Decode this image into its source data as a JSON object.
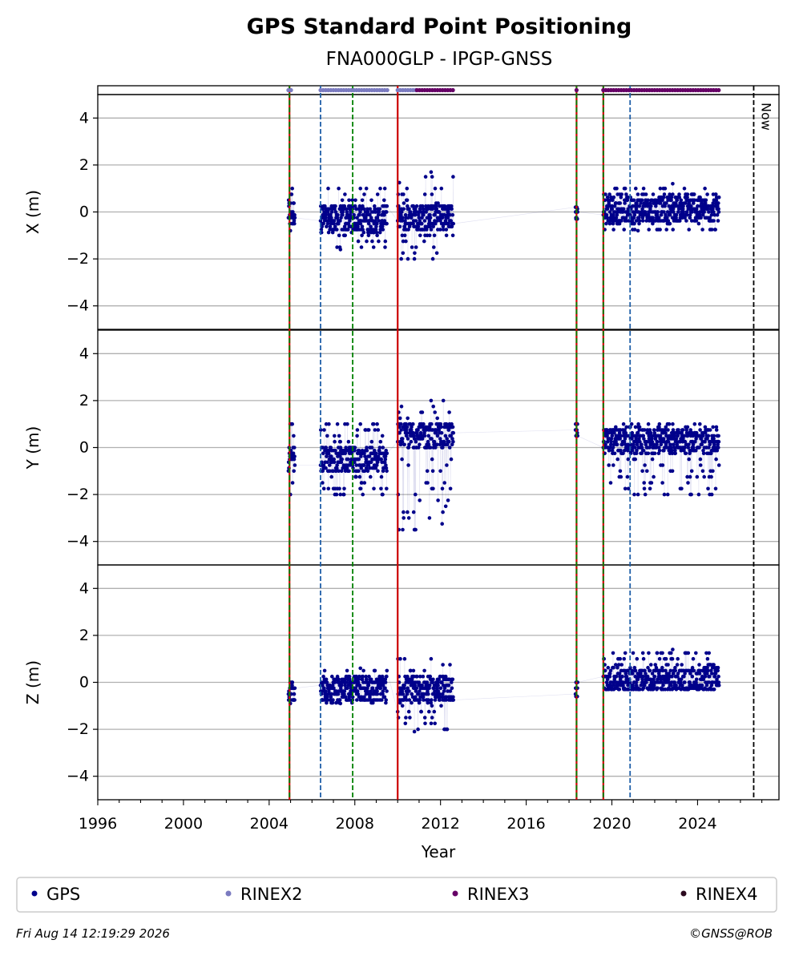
{
  "chart_data": {
    "type": "scatter",
    "title": "GPS Standard Point Positioning",
    "subtitle": "FNA000GLP - IPGP-GNSS",
    "xlabel": "Year",
    "xlim": [
      1996.0,
      2027.8
    ],
    "x_ticks": [
      "1996",
      "2000",
      "2004",
      "2008",
      "2012",
      "2016",
      "2020",
      "2024"
    ],
    "now_label": "Now",
    "now_year": 2026.62,
    "grid": true,
    "legend_placement": "bottom",
    "legend": [
      {
        "name": "GPS",
        "color": "#00008b"
      },
      {
        "name": "RINEX2",
        "color": "#7b7bc0"
      },
      {
        "name": "RINEX3",
        "color": "#660066"
      },
      {
        "name": "RINEX4",
        "color": "#2b0a1e"
      }
    ],
    "panels": [
      {
        "ylabel": "X (m)",
        "ylim": [
          -5,
          5
        ],
        "y_ticks": [
          "4",
          "2",
          "0",
          "−2",
          "−4"
        ],
        "series": [
          {
            "name": "GPS",
            "color": "#00008b",
            "clusters": [
              {
                "x": [
                  2004.9,
                  2005.2
                ],
                "y": [
                  -0.8,
                  1.0
                ],
                "center": 0.0
              },
              {
                "x": [
                  2006.4,
                  2009.5
                ],
                "y": [
                  -1.6,
                  1.0
                ],
                "center": -0.3
              },
              {
                "x": [
                  2010.0,
                  2012.6
                ],
                "y": [
                  -2.0,
                  1.7
                ],
                "center": -0.2
              },
              {
                "x": [
                  2018.3,
                  2018.4
                ],
                "y": [
                  -0.3,
                  0.2
                ],
                "center": 0.0
              },
              {
                "x": [
                  2019.6,
                  2025.0
                ],
                "y": [
                  -0.8,
                  1.2
                ],
                "center": 0.1
              }
            ]
          }
        ]
      },
      {
        "ylabel": "Y (m)",
        "ylim": [
          -5,
          5
        ],
        "y_ticks": [
          "4",
          "2",
          "0",
          "−2",
          "−4"
        ],
        "series": [
          {
            "name": "GPS",
            "color": "#00008b",
            "clusters": [
              {
                "x": [
                  2004.9,
                  2005.2
                ],
                "y": [
                  -2.0,
                  1.0
                ],
                "center": -0.5
              },
              {
                "x": [
                  2006.4,
                  2009.5
                ],
                "y": [
                  -2.0,
                  1.0
                ],
                "center": -0.5
              },
              {
                "x": [
                  2010.0,
                  2012.6
                ],
                "y": [
                  -3.5,
                  2.0
                ],
                "center": 0.5
              },
              {
                "x": [
                  2018.3,
                  2018.4
                ],
                "y": [
                  0.5,
                  1.0
                ],
                "center": 0.7
              },
              {
                "x": [
                  2019.6,
                  2025.0
                ],
                "y": [
                  -2.0,
                  1.0
                ],
                "center": 0.3
              }
            ]
          }
        ]
      },
      {
        "ylabel": "Z (m)",
        "ylim": [
          -5,
          5
        ],
        "y_ticks": [
          "4",
          "2",
          "0",
          "−2",
          "−4"
        ],
        "series": [
          {
            "name": "GPS",
            "color": "#00008b",
            "clusters": [
              {
                "x": [
                  2004.9,
                  2005.2
                ],
                "y": [
                  -0.9,
                  0.0
                ],
                "center": -0.4
              },
              {
                "x": [
                  2006.4,
                  2009.5
                ],
                "y": [
                  -0.9,
                  0.6
                ],
                "center": -0.3
              },
              {
                "x": [
                  2010.0,
                  2012.6
                ],
                "y": [
                  -2.1,
                  1.0
                ],
                "center": -0.3
              },
              {
                "x": [
                  2018.3,
                  2018.4
                ],
                "y": [
                  -0.6,
                  0.0
                ],
                "center": -0.4
              },
              {
                "x": [
                  2019.6,
                  2025.0
                ],
                "y": [
                  -0.3,
                  1.4
                ],
                "center": 0.05
              }
            ]
          }
        ]
      }
    ],
    "events": [
      {
        "year": 2004.95,
        "color": "#cc0000",
        "style": "solid"
      },
      {
        "year": 2004.95,
        "color": "#008000",
        "style": "dashed"
      },
      {
        "year": 2006.4,
        "color": "#1f5fa8",
        "style": "dashed"
      },
      {
        "year": 2007.9,
        "color": "#008000",
        "style": "dashed"
      },
      {
        "year": 2010.0,
        "color": "#cc0000",
        "style": "solid"
      },
      {
        "year": 2018.35,
        "color": "#cc0000",
        "style": "solid"
      },
      {
        "year": 2018.35,
        "color": "#008000",
        "style": "dashed"
      },
      {
        "year": 2019.6,
        "color": "#cc0000",
        "style": "solid"
      },
      {
        "year": 2019.6,
        "color": "#008000",
        "style": "dashed"
      },
      {
        "year": 2020.85,
        "color": "#1f5fa8",
        "style": "dashed"
      }
    ],
    "availability": [
      {
        "name": "RINEX2",
        "color": "#7b7bc0",
        "ranges": [
          [
            2004.9,
            2005.1
          ],
          [
            2006.4,
            2009.6
          ],
          [
            2010.0,
            2010.9
          ]
        ]
      },
      {
        "name": "RINEX3",
        "color": "#660066",
        "ranges": [
          [
            2010.9,
            2012.6
          ],
          [
            2018.35,
            2018.4
          ],
          [
            2019.6,
            2025.0
          ]
        ]
      }
    ]
  },
  "footer": {
    "timestamp": "Fri Aug 14 12:19:29 2026",
    "credit": "©GNSS@ROB"
  }
}
